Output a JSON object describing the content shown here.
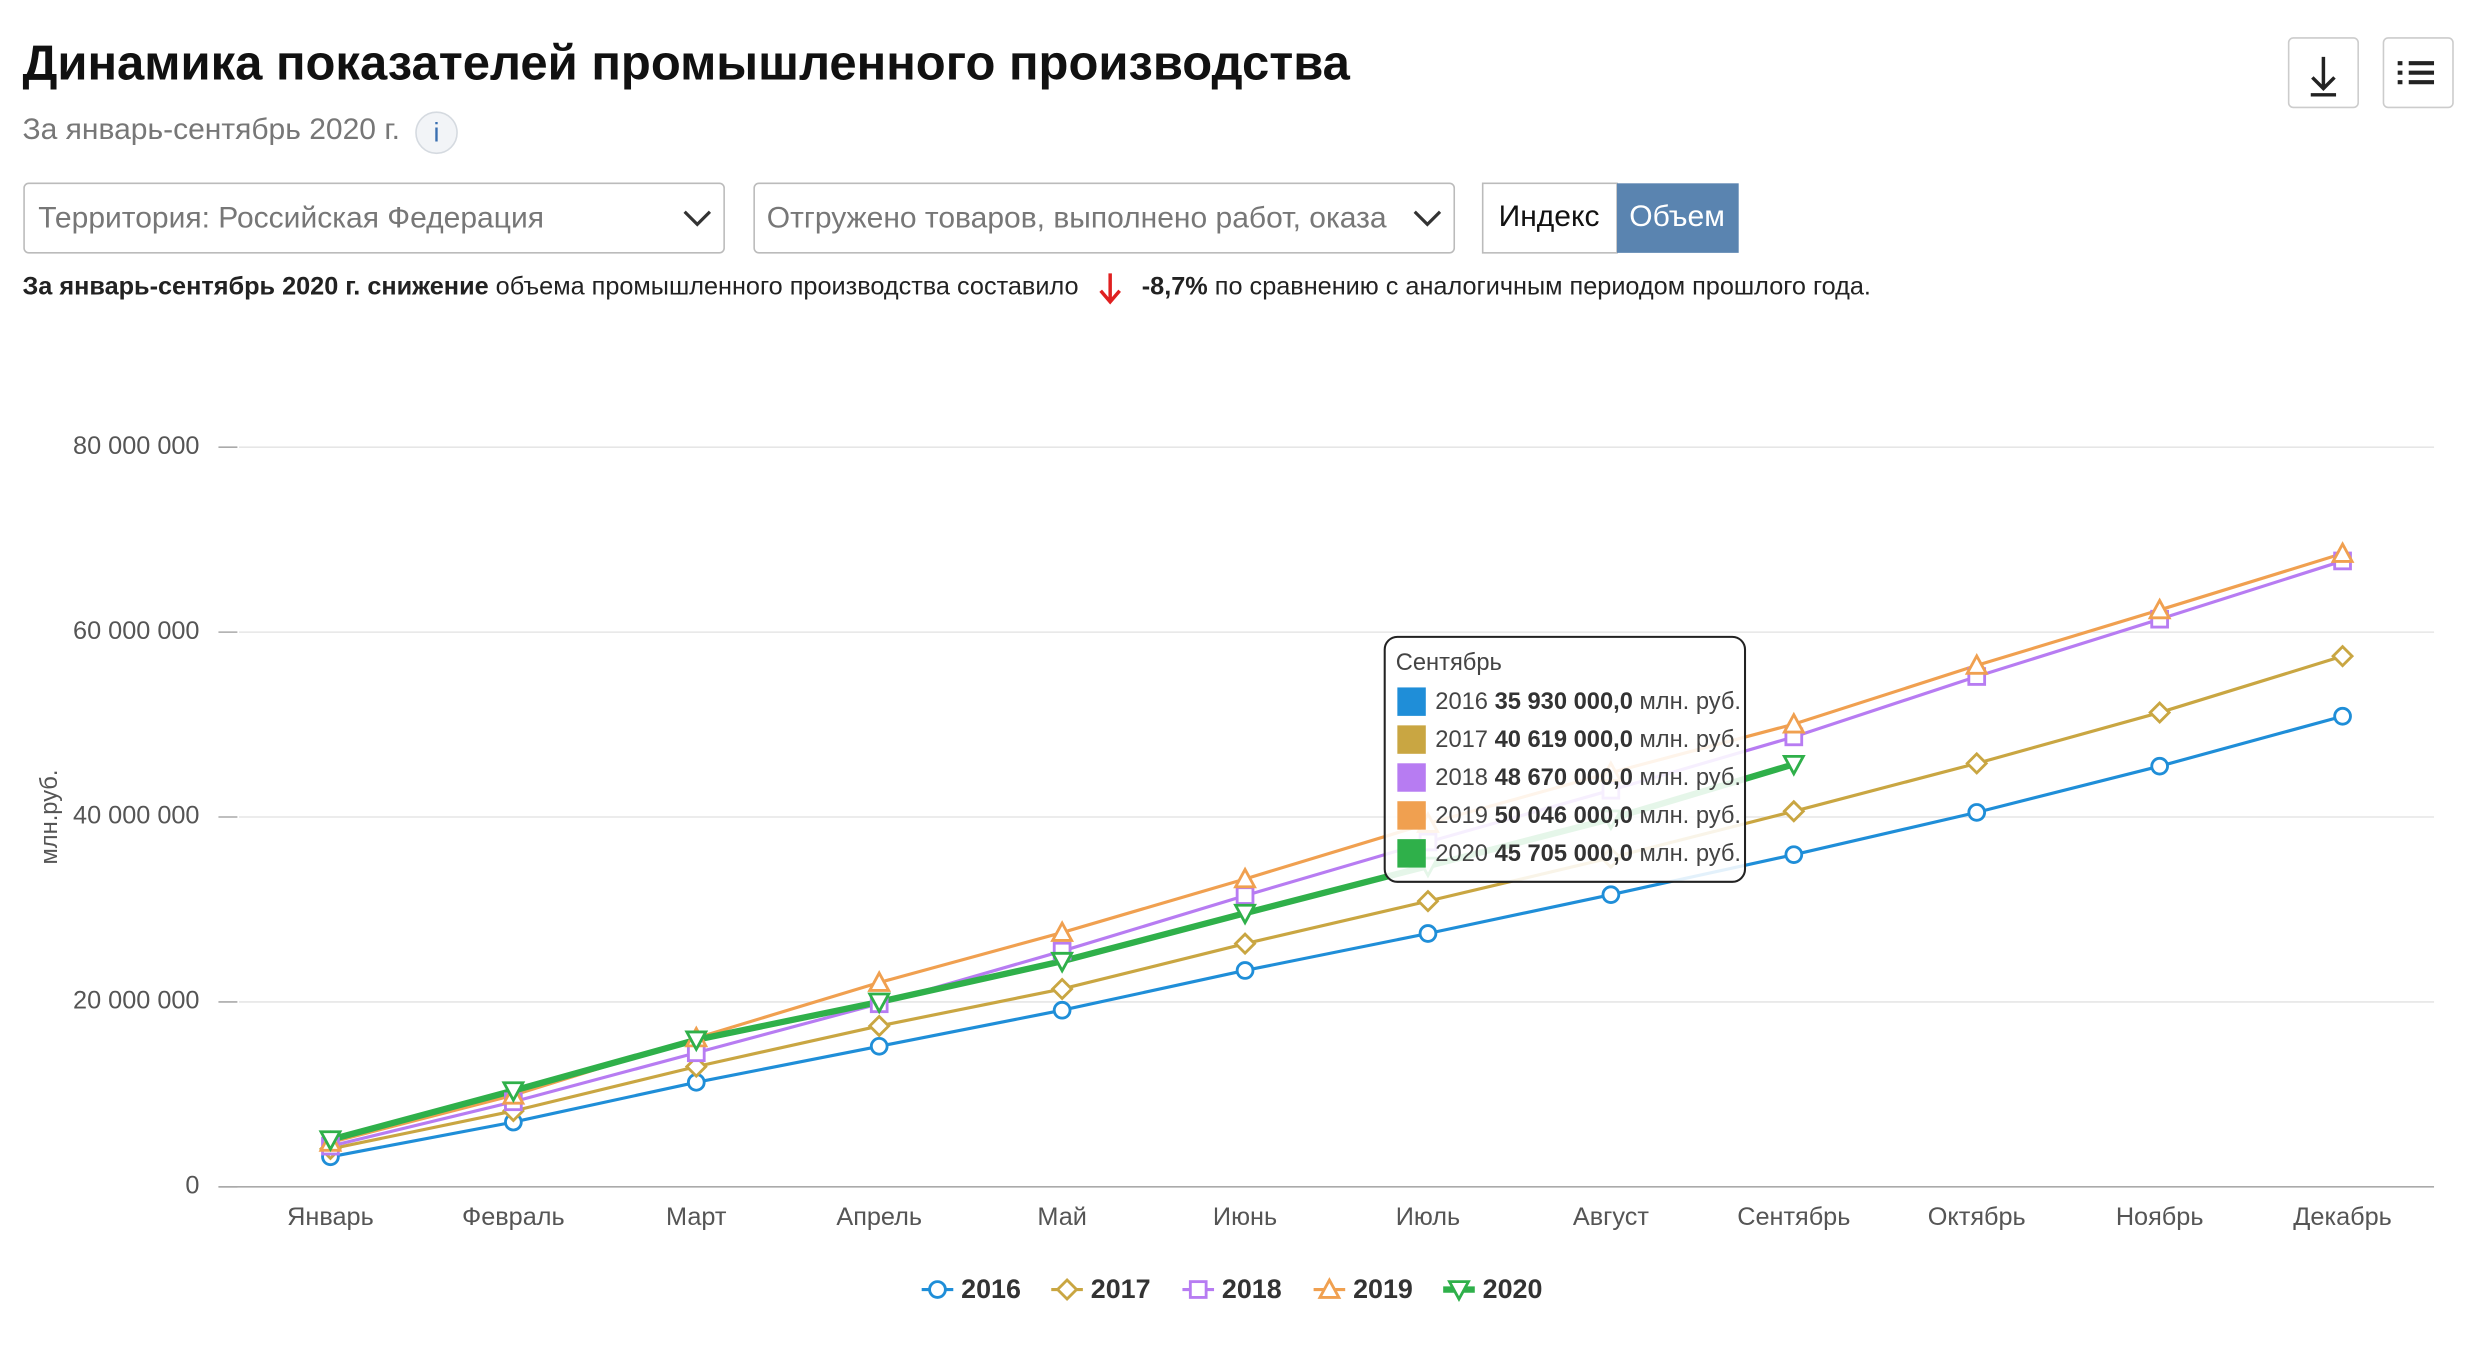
{
  "header": {
    "title": "Динамика показателей промышленного производства",
    "subtitle": "За январь-сентябрь 2020 г.",
    "info": "i"
  },
  "controls": {
    "territory": "Территория: Российская  Федерация",
    "indicator": "Отгружено товаров, выполнено работ, оказа",
    "toggle": [
      "Индекс",
      "Объем"
    ]
  },
  "summary": {
    "bold1": "За январь-сентябрь 2020 г. снижение",
    "text1": " объема промышленного производства составило",
    "bold2": "-8,7%",
    "text2": " по сравнению с аналогичным периодом прошлого года."
  },
  "chart_data": {
    "type": "line",
    "ylabel": "млн.руб.",
    "categories": [
      "Январь",
      "Февраль",
      "Март",
      "Апрель",
      "Май",
      "Июнь",
      "Июль",
      "Август",
      "Сентябрь",
      "Октябрь",
      "Ноябрь",
      "Декабрь"
    ],
    "ylim": [
      0,
      80000000
    ],
    "yticks": [
      0,
      {
        "value": 20000000,
        "label": "20 000 000"
      },
      {
        "value": 40000000,
        "label": "40 000 000"
      },
      {
        "value": 60000000,
        "label": "60 000 000"
      },
      {
        "value": 80000000,
        "label": "80 000 000"
      }
    ],
    "grid": true,
    "legend": "bottom",
    "series": [
      {
        "name": "2016",
        "color": "#1f8ed8",
        "marker": "circle",
        "values": [
          3250000,
          7000000,
          11300000,
          15200000,
          19100000,
          23400000,
          27400000,
          31600000,
          35930000,
          40500000,
          45500000,
          50900000
        ],
        "value_labels": [
          null,
          null,
          null,
          null,
          null,
          null,
          null,
          null,
          "35 930 000,0",
          null,
          null,
          null
        ]
      },
      {
        "name": "2017",
        "color": "#c9a642",
        "marker": "diamond",
        "values": [
          4100000,
          8200000,
          13000000,
          17400000,
          21400000,
          26300000,
          30900000,
          35600000,
          40619000,
          45800000,
          51300000,
          57400000
        ],
        "value_labels": [
          null,
          null,
          null,
          null,
          null,
          null,
          null,
          null,
          "40 619 000,0",
          null,
          null,
          null
        ]
      },
      {
        "name": "2018",
        "color": "#b77cf2",
        "marker": "square",
        "values": [
          4400000,
          9200000,
          14500000,
          19800000,
          25500000,
          31500000,
          37300000,
          42900000,
          48670000,
          55200000,
          61400000,
          67700000
        ],
        "value_labels": [
          null,
          null,
          null,
          null,
          null,
          null,
          null,
          null,
          "48 670 000,0",
          null,
          null,
          null
        ]
      },
      {
        "name": "2019",
        "color": "#f0a050",
        "marker": "triangle",
        "values": [
          4800000,
          9900000,
          16100000,
          22100000,
          27500000,
          33300000,
          39300000,
          44800000,
          50046000,
          56400000,
          62400000,
          68500000
        ],
        "value_labels": [
          null,
          null,
          null,
          null,
          null,
          null,
          null,
          null,
          "50 046 000,0",
          null,
          null,
          null
        ]
      },
      {
        "name": "2020",
        "color": "#2fb04a",
        "marker": "triangle-down",
        "values": [
          5100000,
          10400000,
          15900000,
          20000000,
          24400000,
          29600000,
          34700000,
          39800000,
          45705000,
          null,
          null,
          null
        ],
        "value_labels": [
          null,
          null,
          null,
          null,
          null,
          null,
          null,
          null,
          "45 705 000,0",
          null,
          null,
          null
        ]
      }
    ],
    "tooltip": {
      "title": "Сентябрь",
      "unit": "млн. руб."
    }
  }
}
